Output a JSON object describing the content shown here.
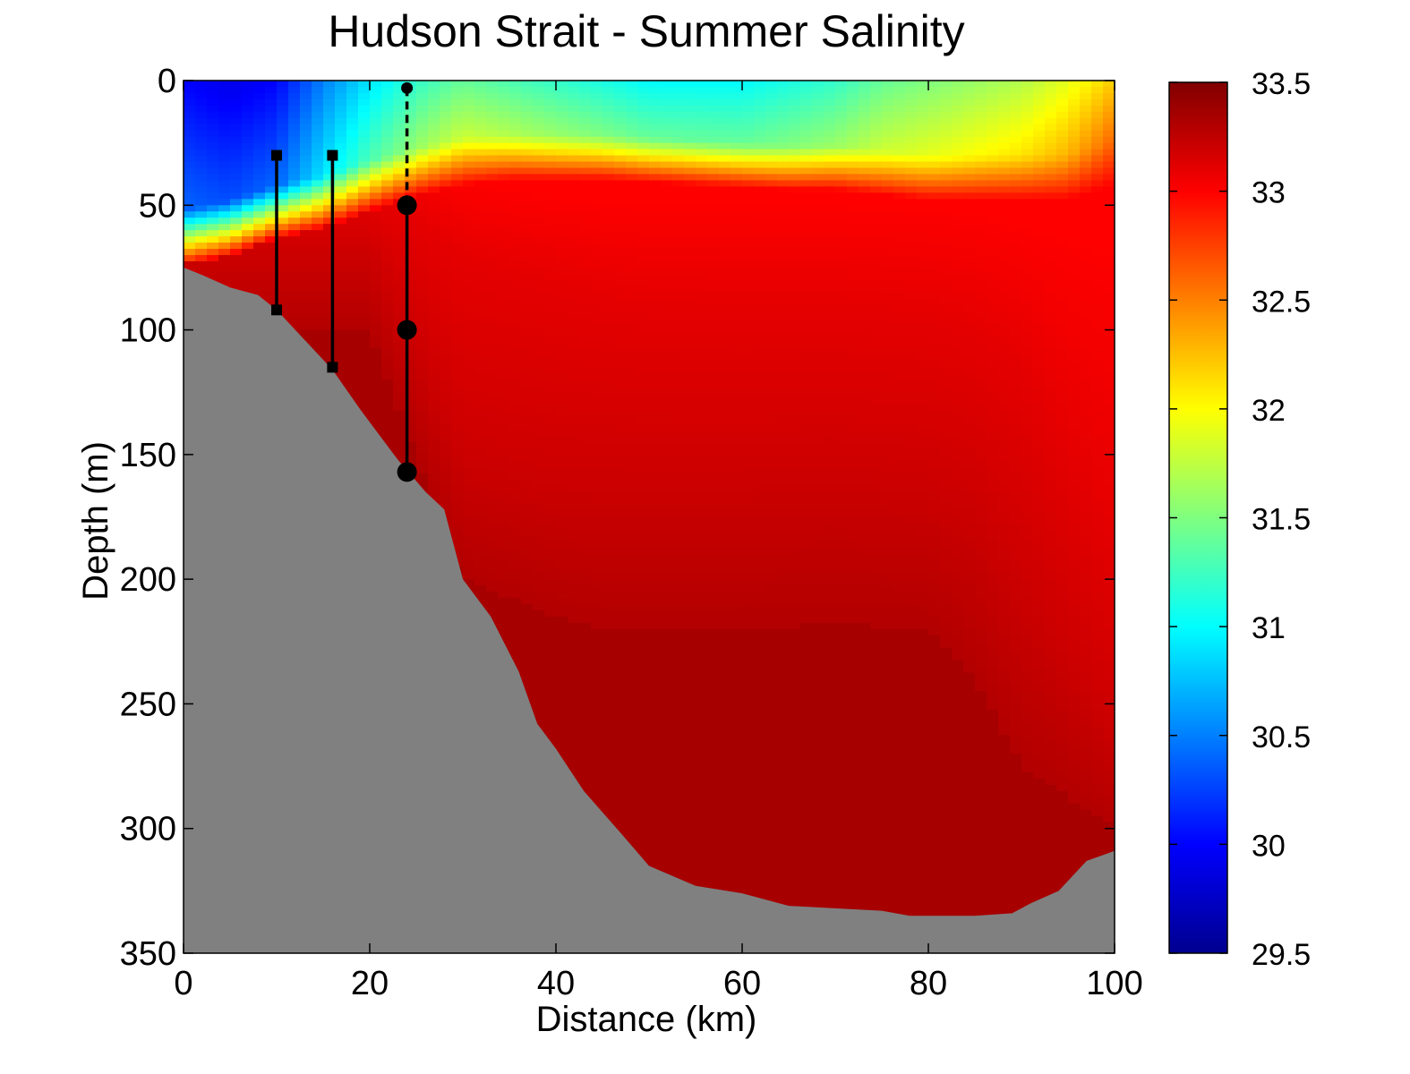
{
  "chart_data": {
    "type": "heatmap",
    "title": "Hudson Strait -  Summer Salinity",
    "xlabel": "Distance (km)",
    "ylabel": "Depth (m)",
    "xlim": [
      0,
      100
    ],
    "ylim": [
      0,
      350
    ],
    "y_reversed": true,
    "x_ticks": [
      "0",
      "20",
      "40",
      "60",
      "80",
      "100"
    ],
    "y_ticks": [
      "0",
      "50",
      "100",
      "150",
      "200",
      "250",
      "300",
      "350"
    ],
    "colorbar": {
      "colormap": "jet",
      "range": [
        29.5,
        33.5
      ],
      "ticks": [
        "29.5",
        "30",
        "30.5",
        "31",
        "31.5",
        "32",
        "32.5",
        "33",
        "33.5"
      ]
    },
    "bathymetry": {
      "fill_color": "#808080",
      "distance_km": [
        0,
        2,
        5,
        8,
        10,
        13,
        16,
        19,
        21,
        23,
        26,
        28,
        30,
        33,
        36,
        38,
        40,
        43,
        47,
        50,
        55,
        60,
        65,
        70,
        75,
        78,
        85,
        89,
        91,
        94,
        97,
        100
      ],
      "depth_m": [
        75,
        78,
        83,
        86,
        92,
        104,
        116,
        132,
        142,
        152,
        165,
        172,
        200,
        215,
        237,
        258,
        268,
        285,
        302,
        315,
        323,
        326,
        331,
        332,
        333,
        335,
        335,
        334,
        330,
        325,
        313,
        309
      ]
    },
    "salinity_field": {
      "distance_km": [
        0,
        5,
        10,
        15,
        20,
        25,
        30,
        35,
        40,
        45,
        50,
        55,
        60,
        65,
        70,
        75,
        80,
        85,
        90,
        95,
        100
      ],
      "depth_m": [
        0,
        10,
        20,
        30,
        40,
        50,
        60,
        70,
        80,
        90,
        100,
        110,
        120,
        130,
        140,
        150,
        160,
        170,
        180,
        190,
        200,
        210,
        220,
        230,
        240,
        250,
        260,
        270,
        280,
        290,
        300,
        310,
        320,
        330,
        340,
        350
      ],
      "surface_salinity": [
        30.0,
        29.9,
        30.0,
        30.5,
        30.9,
        31.2,
        31.4,
        31.3,
        31.2,
        31.1,
        31.0,
        31.0,
        31.0,
        31.1,
        31.2,
        31.4,
        31.5,
        31.6,
        31.7,
        31.9,
        32.2
      ],
      "mixed_layer_depth_m": [
        52,
        48,
        42,
        38,
        32,
        27,
        23,
        22,
        22,
        22,
        23,
        24,
        25,
        26,
        26,
        28,
        30,
        30,
        30,
        30,
        24
      ],
      "halocline_width_m": [
        22,
        22,
        21,
        21,
        20,
        19,
        19,
        18,
        18,
        18,
        18,
        18,
        18,
        18,
        18,
        18,
        18,
        18,
        18,
        18,
        18
      ],
      "level_depths_m": {
        "33.0": [
          30,
          32,
          38,
          44,
          45,
          46,
          46,
          47,
          48,
          50,
          54,
          60
        ],
        "33.1": [
          45,
          55,
          70,
          80,
          85,
          88,
          89,
          89,
          92,
          98,
          110,
          180
        ],
        "33.2": [
          70,
          105,
          150,
          160,
          160,
          160,
          160,
          158,
          162,
          170,
          200,
          260
        ],
        "33.3": [
          100,
          150,
          200,
          215,
          220,
          220,
          220,
          218,
          220,
          240,
          275,
          300
        ]
      },
      "level_distance_km": [
        20,
        25,
        30,
        40,
        45,
        50,
        60,
        70,
        80,
        85,
        90,
        100
      ]
    },
    "moorings": [
      {
        "distance_km": 10,
        "top_depth_m": 30,
        "bottom_depth_m": 92,
        "marker": "square",
        "line": "solid",
        "instruments_m": [
          30,
          92
        ]
      },
      {
        "distance_km": 16,
        "top_depth_m": 30,
        "bottom_depth_m": 115,
        "marker": "square",
        "line": "solid",
        "instruments_m": [
          30,
          115
        ]
      },
      {
        "distance_km": 24,
        "top_depth_m": 3,
        "dashed_to_m": 50,
        "bottom_depth_m": 157,
        "marker": "circle",
        "line": "solid",
        "instruments_m": [
          50,
          100,
          157
        ],
        "surface_float_m": 3
      }
    ]
  }
}
